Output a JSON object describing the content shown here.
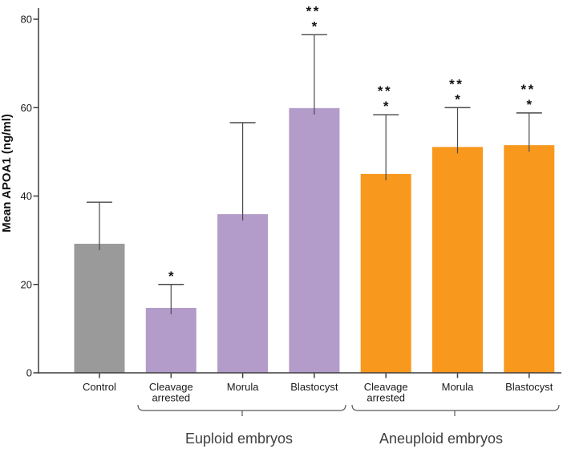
{
  "chart_data": {
    "type": "bar",
    "title": "",
    "xlabel": "",
    "ylabel": "Mean APOA1 (ng/ml)",
    "ylim": [
      0,
      80
    ],
    "yticks": [
      0,
      20,
      40,
      60,
      80
    ],
    "grid": false,
    "legend_position": "none",
    "categories": [
      "Control",
      "Cleavage\narrested",
      "Morula",
      "Blastocyst",
      "Cleavage\narrested",
      "Morula",
      "Blastocyst"
    ],
    "groups": [
      {
        "name": "",
        "color": "#9a9a9a",
        "bars": [
          {
            "label": "Control",
            "value": 29.2,
            "error_top": 38.6,
            "sig": []
          }
        ]
      },
      {
        "name": "Euploid embryos",
        "color": "#b49cca",
        "bars": [
          {
            "label": "Cleavage\narrested",
            "value": 14.7,
            "error_top": 20.0,
            "sig": [
              "*"
            ]
          },
          {
            "label": "Morula",
            "value": 35.9,
            "error_top": 56.6,
            "sig": []
          },
          {
            "label": "Blastocyst",
            "value": 59.9,
            "error_top": 76.5,
            "sig": [
              "**",
              "*"
            ]
          }
        ]
      },
      {
        "name": "Aneuploid embryos",
        "color": "#f8981d",
        "bars": [
          {
            "label": "Cleavage\narrested",
            "value": 45.0,
            "error_top": 58.4,
            "sig": [
              "**",
              "*"
            ]
          },
          {
            "label": "Morula",
            "value": 51.1,
            "error_top": 60.0,
            "sig": [
              "**",
              "*"
            ]
          },
          {
            "label": "Blastocyst",
            "value": 51.5,
            "error_top": 58.8,
            "sig": [
              "**",
              "*"
            ]
          }
        ]
      }
    ],
    "colors": {
      "control": "#9a9a9a",
      "euploid": "#b49cca",
      "aneuploid": "#f8981d",
      "axis": "#3d3d3d",
      "error_bar": "#4a4a4a",
      "text": "#1a1a1a"
    }
  }
}
